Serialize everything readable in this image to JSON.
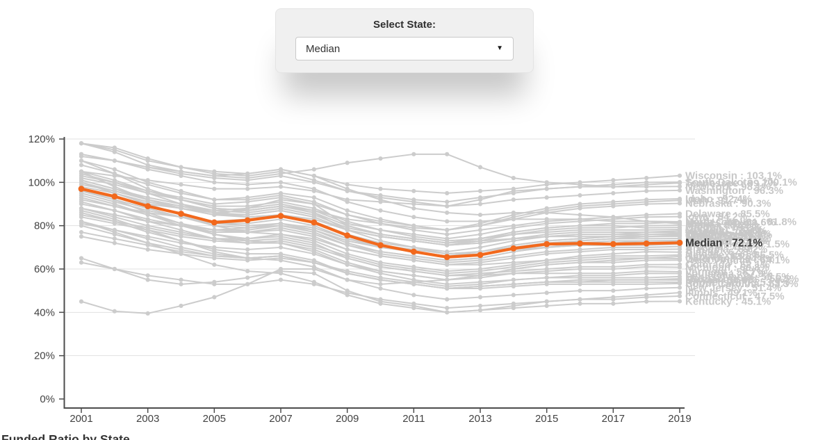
{
  "select_panel": {
    "label": "Select State:",
    "selected_value": "Median",
    "icon": "caret-down-icon"
  },
  "footer_title": "Funded Ratio by State",
  "chart_data": {
    "type": "line",
    "title": "Funded Ratio by State",
    "x": [
      2001,
      2002,
      2003,
      2004,
      2005,
      2006,
      2007,
      2008,
      2009,
      2010,
      2011,
      2012,
      2013,
      2014,
      2015,
      2016,
      2017,
      2018,
      2019
    ],
    "x_tick_labels": [
      "2001",
      "2003",
      "2005",
      "2007",
      "2009",
      "2011",
      "2013",
      "2015",
      "2017",
      "2019"
    ],
    "y_tick_values": [
      0,
      20,
      40,
      60,
      80,
      100,
      120
    ],
    "y_tick_labels": [
      "0%",
      "20%",
      "40%",
      "60%",
      "80%",
      "100%",
      "120%"
    ],
    "ylim": [
      0,
      120
    ],
    "grid": true,
    "legend_position": "right-end-labels",
    "colors": {
      "median": "#f2691d",
      "state_line": "#cccccc",
      "state_label": "#c8c8c8",
      "median_label": "#3b3b3b",
      "axis": "#4c4c4c",
      "grid": "#e1e1e1",
      "tick_text": "#424242"
    },
    "median_series": {
      "name": "Median",
      "label": "Median : 72.1%",
      "values": [
        97,
        93.5,
        89,
        85.5,
        81.5,
        82.5,
        84.5,
        81.5,
        75.5,
        71,
        68,
        65.5,
        66.5,
        69.5,
        71.5,
        71.8,
        71.5,
        71.8,
        72.1
      ]
    },
    "state_series": [
      {
        "name": "Wisconsin",
        "label": "Wisconsin : 103.1%",
        "values": [
          118,
          114,
          108,
          105,
          103,
          104,
          106,
          103,
          99,
          97,
          96,
          95,
          96,
          97,
          99,
          100,
          101,
          102,
          103.1
        ]
      },
      {
        "name": "South Dakota",
        "label": "South Dakota : 100.1%",
        "values": [
          105,
          103,
          101,
          99,
          97,
          97,
          98,
          96,
          92,
          91,
          90,
          89,
          92,
          96,
          97,
          98,
          99,
          100,
          100.1
        ]
      },
      {
        "name": "Tennessee",
        "label": "Tennessee : 99.7%",
        "values": [
          113,
          110,
          107,
          104,
          102,
          101,
          103,
          100,
          96,
          94,
          92,
          91,
          93,
          95,
          97,
          98,
          98,
          99,
          99.7
        ]
      },
      {
        "name": "New York",
        "label": "New York : 98.1%",
        "values": [
          112,
          110,
          107,
          105,
          103,
          102,
          104,
          106,
          109,
          111,
          113,
          113,
          107,
          102,
          100,
          99,
          98,
          98,
          98.1
        ]
      },
      {
        "name": "Washington",
        "label": "Washington : 96.3%",
        "values": [
          118,
          116,
          111,
          107,
          104,
          103,
          105,
          101,
          96,
          93,
          91,
          89,
          90,
          92,
          93,
          94,
          95,
          96,
          96.3
        ]
      },
      {
        "name": "Idaho",
        "label": "Idaho : 92.4%",
        "values": [
          110,
          106,
          100,
          96,
          92,
          93,
          95,
          93,
          87,
          83,
          80,
          78,
          81,
          85,
          88,
          90,
          91,
          92,
          92.4
        ]
      },
      {
        "name": "Utah",
        "label": "Utah : 91.7%",
        "values": [
          103,
          100,
          96,
          93,
          90,
          91,
          93,
          90,
          85,
          82,
          80,
          78,
          80,
          84,
          87,
          89,
          90,
          91,
          91.7
        ]
      },
      {
        "name": "Nebraska",
        "label": "Nebraska : 90.3%",
        "values": [
          96,
          93,
          90,
          88,
          86,
          87,
          89,
          87,
          83,
          81,
          79,
          78,
          80,
          83,
          86,
          88,
          89,
          90,
          90.3
        ]
      },
      {
        "name": "Delaware",
        "label": "Delaware : 85.5%",
        "values": [
          108,
          104,
          99,
          95,
          92,
          92,
          94,
          91,
          85,
          81,
          78,
          76,
          78,
          80,
          82,
          83,
          84,
          85,
          85.5
        ]
      },
      {
        "name": "Iowa",
        "label": "Iowa : 84.2%",
        "values": [
          101,
          97,
          92,
          89,
          87,
          88,
          90,
          87,
          81,
          78,
          76,
          74,
          76,
          79,
          81,
          82,
          83,
          84,
          84.2
        ]
      },
      {
        "name": "North Carolina",
        "label": "North Carolina : 81.8%",
        "values": [
          113,
          110,
          106,
          103,
          100,
          99,
          100,
          97,
          91,
          87,
          84,
          82,
          82,
          83,
          83,
          83,
          82,
          82,
          81.8
        ]
      },
      {
        "name": "Minnesota",
        "label": "Minnesota : 81.6%",
        "values": [
          105,
          101,
          96,
          92,
          88,
          87,
          89,
          86,
          80,
          76,
          74,
          72,
          74,
          77,
          79,
          80,
          81,
          81,
          81.6
        ]
      },
      {
        "name": "Florida",
        "label": "Florida : 80.9%",
        "values": [
          118,
          115,
          110,
          107,
          105,
          104,
          106,
          103,
          97,
          92,
          88,
          86,
          85,
          86,
          86,
          85,
          84,
          82,
          80.9
        ]
      },
      {
        "name": "Maine",
        "label": "Maine : 80.2%",
        "values": [
          92,
          89,
          86,
          84,
          82,
          83,
          85,
          83,
          78,
          75,
          73,
          71,
          73,
          76,
          78,
          79,
          79,
          80,
          80.2
        ]
      },
      {
        "name": "Oregon",
        "label": "Oregon : 79.2%",
        "values": [
          105,
          98,
          92,
          88,
          85,
          88,
          92,
          90,
          80,
          76,
          74,
          72,
          74,
          77,
          79,
          80,
          80,
          79,
          79.2
        ]
      },
      {
        "name": "Georgia",
        "label": "Georgia : 78.3%",
        "values": [
          102,
          99,
          95,
          92,
          89,
          89,
          91,
          88,
          82,
          78,
          75,
          73,
          74,
          76,
          77,
          78,
          78,
          78,
          78.3
        ]
      },
      {
        "name": "Missouri",
        "label": "Missouri : 77.6%",
        "values": [
          98,
          95,
          91,
          88,
          85,
          85,
          87,
          84,
          78,
          75,
          73,
          71,
          72,
          74,
          76,
          77,
          77,
          77,
          77.6
        ]
      },
      {
        "name": "Virginia",
        "label": "Virginia : 76.8%",
        "values": [
          100,
          96,
          92,
          88,
          85,
          84,
          85,
          82,
          76,
          72,
          70,
          68,
          70,
          73,
          75,
          76,
          76,
          77,
          76.8
        ]
      },
      {
        "name": "Wyoming",
        "label": "Wyoming : 76.3%",
        "values": [
          99,
          96,
          92,
          89,
          86,
          85,
          87,
          84,
          78,
          75,
          73,
          71,
          72,
          74,
          75,
          76,
          76,
          76,
          76.3
        ]
      },
      {
        "name": "California",
        "label": "California : 75.9%",
        "values": [
          110,
          104,
          97,
          92,
          88,
          87,
          89,
          86,
          78,
          73,
          70,
          67,
          68,
          71,
          73,
          74,
          75,
          76,
          75.9
        ]
      },
      {
        "name": "Texas",
        "label": "Texas : 75.5%",
        "values": [
          101,
          97,
          93,
          90,
          87,
          86,
          88,
          85,
          79,
          76,
          74,
          72,
          73,
          74,
          75,
          75,
          75,
          75,
          75.5
        ]
      },
      {
        "name": "Ohio",
        "label": "Ohio : 75.2%",
        "values": [
          95,
          91,
          87,
          84,
          81,
          81,
          83,
          80,
          74,
          70,
          68,
          66,
          68,
          71,
          73,
          74,
          75,
          75,
          75.2
        ]
      },
      {
        "name": "Nevada",
        "label": "Nevada : 75.1%",
        "values": [
          88,
          85,
          82,
          80,
          78,
          78,
          80,
          78,
          73,
          70,
          68,
          66,
          67,
          69,
          71,
          73,
          74,
          75,
          75.1
        ]
      },
      {
        "name": "Arkansas",
        "label": "Arkansas : 74.1%",
        "values": [
          88,
          85,
          82,
          80,
          78,
          79,
          81,
          79,
          74,
          71,
          69,
          67,
          68,
          70,
          72,
          73,
          74,
          74,
          74.1
        ]
      },
      {
        "name": "Montana",
        "label": "Montana : 73.2%",
        "values": [
          90,
          87,
          83,
          80,
          77,
          77,
          79,
          76,
          71,
          68,
          66,
          64,
          65,
          68,
          70,
          72,
          73,
          73,
          73.2
        ]
      },
      {
        "name": "Maryland",
        "label": "Maryland : 72.9%",
        "values": [
          97,
          93,
          89,
          85,
          81,
          80,
          81,
          78,
          72,
          68,
          66,
          64,
          65,
          68,
          70,
          71,
          72,
          73,
          72.9
        ]
      },
      {
        "name": "North Dakota",
        "label": "North Dakota : 71.5%",
        "values": [
          104,
          100,
          95,
          90,
          86,
          84,
          85,
          82,
          75,
          71,
          68,
          66,
          67,
          69,
          70,
          71,
          71,
          71,
          71.5
        ]
      },
      {
        "name": "Arizona",
        "label": "Arizona : 70.4%",
        "values": [
          96,
          92,
          88,
          84,
          80,
          79,
          80,
          77,
          71,
          67,
          65,
          63,
          64,
          66,
          68,
          69,
          70,
          70,
          70.4
        ]
      },
      {
        "name": "Alabama",
        "label": "Alabama : 69.2%",
        "values": [
          93,
          89,
          85,
          81,
          78,
          77,
          78,
          75,
          69,
          66,
          64,
          62,
          63,
          65,
          67,
          68,
          69,
          69,
          69.2
        ]
      },
      {
        "name": "Alaska",
        "label": "Alaska : 67.8%",
        "values": [
          100,
          95,
          90,
          85,
          80,
          77,
          76,
          73,
          67,
          63,
          61,
          59,
          60,
          62,
          64,
          66,
          67,
          68,
          67.8
        ]
      },
      {
        "name": "New Mexico",
        "label": "New Mexico : 66.5%",
        "values": [
          85,
          82,
          79,
          76,
          74,
          74,
          76,
          74,
          69,
          66,
          64,
          62,
          62,
          63,
          64,
          65,
          66,
          66,
          66.5
        ]
      },
      {
        "name": "Kansas",
        "label": "Kansas : 65.8%",
        "values": [
          88,
          84,
          80,
          77,
          74,
          73,
          74,
          71,
          66,
          62,
          60,
          58,
          59,
          61,
          63,
          64,
          65,
          65,
          65.8
        ]
      },
      {
        "name": "Oklahoma",
        "label": "Oklahoma : 64.8%",
        "values": [
          81,
          78,
          75,
          72,
          70,
          69,
          70,
          67,
          62,
          59,
          57,
          55,
          57,
          60,
          62,
          63,
          64,
          65,
          64.8
        ]
      },
      {
        "name": "West Virginia",
        "label": "West Virginia : 64.1%",
        "values": [
          45,
          40.5,
          39.5,
          43,
          47,
          53,
          60,
          60,
          55,
          53,
          54,
          55,
          57,
          60,
          62,
          63,
          63,
          64,
          64.1
        ]
      },
      {
        "name": "Colorado",
        "label": "Colorado : 62.1%",
        "values": [
          94,
          90,
          85,
          80,
          76,
          74,
          75,
          72,
          65,
          61,
          59,
          57,
          58,
          59,
          60,
          61,
          61,
          62,
          62.1
        ]
      },
      {
        "name": "Michigan",
        "label": "Michigan : 60.8%",
        "values": [
          91,
          87,
          82,
          78,
          74,
          72,
          72,
          69,
          63,
          59,
          57,
          55,
          56,
          58,
          59,
          60,
          60,
          61,
          60.8
        ]
      },
      {
        "name": "Vermont",
        "label": "Vermont : 58.7%",
        "values": [
          84,
          81,
          78,
          75,
          73,
          72,
          73,
          70,
          65,
          61,
          59,
          57,
          57,
          58,
          58,
          58,
          58,
          59,
          58.7
        ]
      },
      {
        "name": "Louisiana",
        "label": "Louisiana : 57.9%",
        "values": [
          75,
          72,
          69,
          67,
          65,
          64,
          65,
          63,
          59,
          56,
          54,
          52,
          53,
          55,
          56,
          57,
          57,
          58,
          57.9
        ]
      },
      {
        "name": "Pennsylvania",
        "label": "Pennsylvania : 56.5%",
        "values": [
          96,
          92,
          86,
          81,
          76,
          73,
          72,
          68,
          62,
          58,
          55,
          53,
          54,
          55,
          56,
          56,
          56,
          56,
          56.5
        ]
      },
      {
        "name": "Massachusetts",
        "label": "Massachusetts : 55.5%",
        "values": [
          86,
          82,
          77,
          73,
          69,
          67,
          67,
          64,
          58,
          55,
          53,
          51,
          52,
          53,
          54,
          55,
          55,
          55,
          55.5
        ]
      },
      {
        "name": "Hawaii",
        "label": "Hawaii : 54.9%",
        "values": [
          82,
          78,
          74,
          70,
          67,
          65,
          66,
          63,
          58,
          55,
          53,
          51,
          52,
          53,
          54,
          54,
          55,
          55,
          54.9
        ]
      },
      {
        "name": "Rhode Island",
        "label": "Rhode Island : 53.9%",
        "values": [
          77,
          74,
          71,
          68,
          66,
          65,
          66,
          63,
          58,
          55,
          53,
          51,
          52,
          53,
          54,
          54,
          54,
          54,
          53.9
        ]
      },
      {
        "name": "South Carolina",
        "label": "South Carolina : 53.3%",
        "values": [
          80,
          76,
          72,
          69,
          66,
          65,
          66,
          63,
          58,
          55,
          53,
          51,
          51,
          52,
          53,
          53,
          53,
          53,
          53.3
        ]
      },
      {
        "name": "New Jersey",
        "label": "New Jersey : 51.4%",
        "values": [
          87,
          83,
          78,
          73,
          68,
          65,
          64,
          61,
          55,
          51,
          48,
          46,
          47,
          48,
          49,
          50,
          50,
          51,
          51.4
        ]
      },
      {
        "name": "Illinois",
        "label": "Illinois : 49.1%",
        "values": [
          65,
          60,
          55,
          53,
          54,
          56,
          59,
          58,
          50,
          45,
          43,
          40,
          41,
          43,
          45,
          46,
          47,
          48,
          49.1
        ]
      },
      {
        "name": "Connecticut",
        "label": "Connecticut : 47.5%",
        "values": [
          63,
          60,
          57,
          55,
          53,
          53,
          55,
          53,
          49,
          46,
          44,
          42,
          43,
          44,
          45,
          46,
          46,
          47,
          47.5
        ]
      },
      {
        "name": "Kentucky",
        "label": "Kentucky : 45.1%",
        "values": [
          82,
          77,
          72,
          67,
          62,
          59,
          58,
          54,
          48,
          44,
          42,
          40,
          41,
          42,
          43,
          44,
          44,
          45,
          45.1
        ]
      }
    ]
  }
}
